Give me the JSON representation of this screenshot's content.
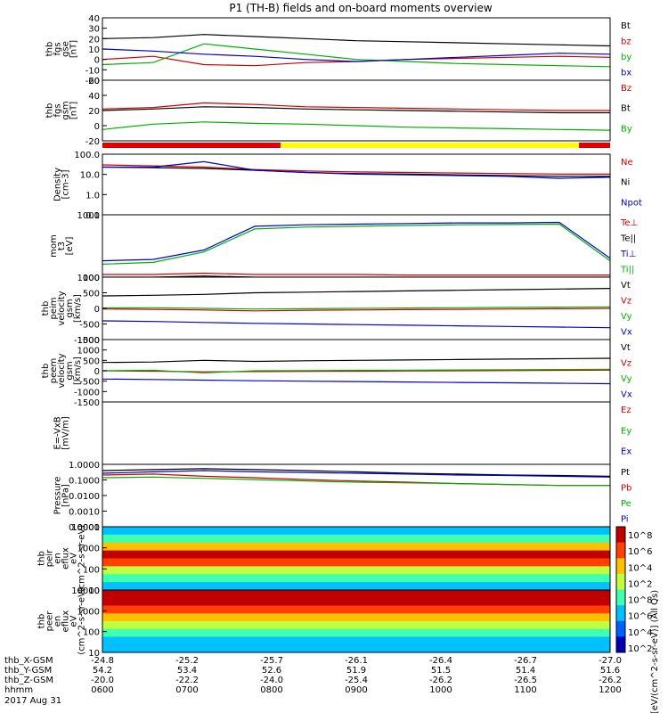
{
  "title": "P1 (TH-B) fields and on-board moments overview",
  "chart_data": [
    {
      "type": "line",
      "panel": "fgs_gse",
      "ylabel": [
        "thb",
        "fgs",
        "gse",
        "[nT]"
      ],
      "ylim": [
        -20,
        40
      ],
      "yticks": [
        "40",
        "30",
        "20",
        "10",
        "0",
        "-10",
        "-20"
      ],
      "series": [
        {
          "name": "Bt",
          "color": "#000000",
          "values": [
            20,
            21,
            24,
            22,
            20,
            18,
            17,
            16,
            15,
            14,
            13
          ]
        },
        {
          "name": "bz",
          "color": "#d00000",
          "values": [
            0,
            3,
            -5,
            -6,
            -3,
            -2,
            0,
            1,
            2,
            3,
            2
          ]
        },
        {
          "name": "by",
          "color": "#00b000",
          "values": [
            -5,
            -3,
            15,
            10,
            5,
            0,
            -2,
            -4,
            -5,
            -6,
            -7
          ]
        },
        {
          "name": "bx",
          "color": "#0000d0",
          "values": [
            10,
            8,
            5,
            3,
            0,
            -2,
            0,
            2,
            4,
            6,
            5
          ]
        }
      ]
    },
    {
      "type": "line",
      "panel": "fgs_gsm",
      "ylabel": [
        "thb",
        "fgs",
        "gsm",
        "[nT]"
      ],
      "ylim": [
        -20,
        60
      ],
      "yticks": [
        "60",
        "40",
        "20",
        "0",
        "-20"
      ],
      "series": [
        {
          "name": "Bz",
          "color": "#d00000",
          "values": [
            22,
            24,
            30,
            28,
            25,
            24,
            23,
            22,
            21,
            20,
            20
          ]
        },
        {
          "name": "Bt",
          "color": "#000000",
          "values": [
            20,
            22,
            25,
            24,
            22,
            21,
            20,
            19,
            18,
            17,
            17
          ]
        },
        {
          "name": "By",
          "color": "#00b000",
          "values": [
            -5,
            2,
            5,
            3,
            2,
            0,
            -2,
            -3,
            -4,
            -5,
            -6
          ]
        }
      ]
    },
    {
      "type": "line",
      "panel": "density",
      "ylabel": [
        "Density",
        "[cm-3]"
      ],
      "yscale": "log",
      "yticks": [
        "100.0",
        "10.0",
        "1.0",
        "0.1"
      ],
      "series": [
        {
          "name": "Ne",
          "color": "#d00000",
          "values": [
            40,
            35,
            30,
            22,
            18,
            16,
            15,
            14,
            13,
            12,
            12
          ]
        },
        {
          "name": "Ni",
          "color": "#000000",
          "values": [
            30,
            28,
            25,
            20,
            15,
            13,
            12,
            11,
            10,
            9,
            9
          ]
        },
        {
          "name": "Npot",
          "color": "#0000d0",
          "values": [
            30,
            30,
            60,
            20,
            15,
            12,
            11,
            10,
            9,
            7,
            8
          ]
        }
      ]
    },
    {
      "type": "line",
      "panel": "temperature",
      "ylabel": [
        "mom",
        "t3",
        "[eV]"
      ],
      "yscale": "log",
      "yticks": [
        "1000",
        "100"
      ],
      "series": [
        {
          "name": "Te⊥",
          "color": "#d00000",
          "values": [
            25,
            25,
            28,
            25,
            25,
            25,
            24,
            24,
            24,
            24,
            24
          ]
        },
        {
          "name": "Te||",
          "color": "#000000",
          "values": [
            20,
            20,
            22,
            20,
            20,
            20,
            20,
            20,
            20,
            20,
            20
          ]
        },
        {
          "name": "Ti⊥",
          "color": "#0000d0",
          "values": [
            80,
            90,
            200,
            1500,
            1700,
            1800,
            1900,
            2000,
            2000,
            2100,
            100
          ]
        },
        {
          "name": "Ti||",
          "color": "#00b000",
          "values": [
            60,
            70,
            170,
            1200,
            1400,
            1500,
            1600,
            1700,
            1750,
            1800,
            80
          ]
        }
      ]
    },
    {
      "type": "line",
      "panel": "ion_velocity",
      "ylabel": [
        "thb",
        "peim",
        "velocity",
        "gsm",
        "[km/s]"
      ],
      "ylim": [
        -1000,
        1000
      ],
      "yticks": [
        "1000",
        "500",
        "0",
        "-500",
        "-1000"
      ],
      "series": [
        {
          "name": "Vt",
          "color": "#000000",
          "values": [
            400,
            420,
            450,
            500,
            520,
            540,
            560,
            580,
            600,
            620,
            640
          ]
        },
        {
          "name": "Vz",
          "color": "#d00000",
          "values": [
            -20,
            -30,
            -50,
            -80,
            -60,
            -50,
            -40,
            -30,
            -20,
            -10,
            0
          ]
        },
        {
          "name": "Vy",
          "color": "#00b000",
          "values": [
            10,
            20,
            0,
            -20,
            -10,
            0,
            10,
            20,
            30,
            40,
            50
          ]
        },
        {
          "name": "Vx",
          "color": "#0000d0",
          "values": [
            -400,
            -420,
            -450,
            -480,
            -500,
            -520,
            -540,
            -560,
            -580,
            -600,
            -620
          ]
        }
      ]
    },
    {
      "type": "line",
      "panel": "electron_velocity",
      "ylabel": [
        "thb",
        "peem",
        "velocity",
        "gsm",
        "[km/s]"
      ],
      "ylim": [
        -1500,
        1500
      ],
      "yticks": [
        "1500",
        "1000",
        "500",
        "0",
        "-500",
        "-1000",
        "-1500"
      ],
      "series": [
        {
          "name": "Vt",
          "color": "#000000",
          "values": [
            400,
            420,
            500,
            450,
            480,
            500,
            520,
            540,
            560,
            580,
            600
          ]
        },
        {
          "name": "Vz",
          "color": "#d00000",
          "values": [
            0,
            -20,
            -50,
            -40,
            -30,
            -20,
            -10,
            0,
            10,
            20,
            30
          ]
        },
        {
          "name": "Vy",
          "color": "#00b000",
          "values": [
            0,
            20,
            -100,
            0,
            10,
            20,
            30,
            40,
            50,
            60,
            70
          ]
        },
        {
          "name": "Vx",
          "color": "#0000d0",
          "values": [
            -400,
            -420,
            -450,
            -480,
            -500,
            -520,
            -540,
            -560,
            -580,
            -600,
            -620
          ]
        }
      ]
    },
    {
      "type": "line",
      "panel": "efield",
      "ylabel": [
        "E=-VxB",
        "[mV/m]"
      ],
      "ylim": [
        -4,
        4
      ],
      "series": [
        {
          "name": "Ez",
          "color": "#d00000",
          "values": []
        },
        {
          "name": "Ey",
          "color": "#00b000",
          "values": []
        },
        {
          "name": "Ex",
          "color": "#0000d0",
          "values": []
        }
      ]
    },
    {
      "type": "line",
      "panel": "pressure",
      "ylabel": [
        "Pressure",
        "[nPa]"
      ],
      "yscale": "log",
      "yticks": [
        "1.0000",
        "0.1000",
        "0.0100",
        "0.0010",
        "0.0001"
      ],
      "series": [
        {
          "name": "Pt",
          "color": "#000000",
          "values": [
            0.6,
            0.7,
            0.8,
            0.7,
            0.6,
            0.5,
            0.4,
            0.35,
            0.3,
            0.28,
            0.25
          ]
        },
        {
          "name": "Pb",
          "color": "#d00000",
          "values": [
            0.3,
            0.35,
            0.25,
            0.2,
            0.15,
            0.12,
            0.1,
            0.08,
            0.07,
            0.06,
            0.06
          ]
        },
        {
          "name": "Pe",
          "color": "#00b000",
          "values": [
            0.2,
            0.22,
            0.18,
            0.15,
            0.12,
            0.1,
            0.09,
            0.08,
            0.07,
            0.06,
            0.06
          ]
        },
        {
          "name": "Pi",
          "color": "#0000d0",
          "values": [
            0.4,
            0.5,
            0.6,
            0.5,
            0.45,
            0.4,
            0.35,
            0.3,
            0.28,
            0.25,
            0.22
          ]
        }
      ]
    },
    {
      "type": "heatmap",
      "panel": "ion_spectrogram",
      "ylabel": [
        "thb",
        "peir",
        "en",
        "eflux",
        "eV",
        "(cm^2-s-sr-eV)"
      ],
      "yscale": "log",
      "yticks": [
        "10000",
        "1000",
        "100",
        "10"
      ]
    },
    {
      "type": "heatmap",
      "panel": "electron_spectrogram",
      "ylabel": [
        "thb",
        "peer",
        "en",
        "eflux",
        "eV",
        "(cm^2-s-sr-eV)"
      ],
      "yscale": "log",
      "yticks": [
        "10000",
        "1000",
        "100",
        "10"
      ]
    }
  ],
  "colorbar": {
    "ticks": [
      "10^8",
      "10^6",
      "10^4",
      "10^2",
      "10^8",
      "10^6",
      "10^4",
      "10^2"
    ],
    "label": "[eV/(cm^2-s-sr-eV)] (All Qs)"
  },
  "status_bar": {
    "colors": [
      "#e00000",
      "#ffff00",
      "#000000"
    ]
  },
  "xaxis": {
    "rows": [
      {
        "label": "thb_X-GSM",
        "values": [
          "-24.8",
          "-25.2",
          "-25.7",
          "-26.1",
          "-26.4",
          "-26.7",
          "-27.0"
        ]
      },
      {
        "label": "thb_Y-GSM",
        "values": [
          "54.2",
          "53.4",
          "52.6",
          "51.9",
          "51.5",
          "51.4",
          "51.6"
        ]
      },
      {
        "label": "thb_Z-GSM",
        "values": [
          "-20.0",
          "-22.2",
          "-24.0",
          "-25.4",
          "-26.2",
          "-26.5",
          "-26.2"
        ]
      },
      {
        "label": "hhmm",
        "values": [
          "0600",
          "0700",
          "0800",
          "0900",
          "1000",
          "1100",
          "1200"
        ]
      }
    ],
    "date": "2017 Aug 31"
  }
}
